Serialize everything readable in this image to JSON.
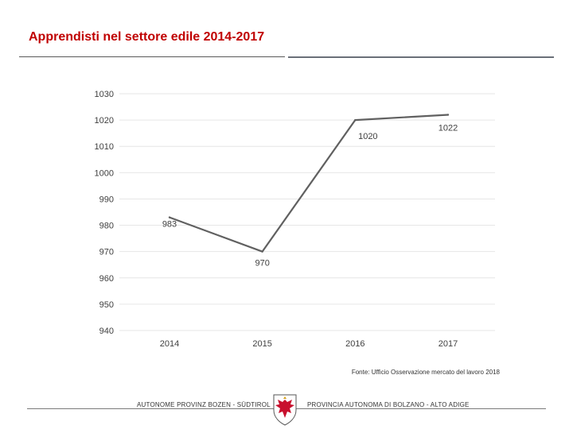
{
  "slide": {
    "title": "Apprendisti nel settore edile 2014-2017",
    "source": "Fonte: Ufficio Osservazione mercato del lavoro 2018"
  },
  "footer": {
    "left_text": "AUTONOME PROVINZ BOZEN - SÜDTIROL",
    "right_text": "PROVINCIA AUTONOMA DI BOLZANO - ALTO ADIGE",
    "emblem_icon": "tyrol-eagle-icon"
  },
  "colors": {
    "title": "#c00000",
    "line": "#606060",
    "grid": "#e6e6e6",
    "text": "#404040",
    "emblem_red": "#c8102e"
  },
  "chart_data": {
    "type": "line",
    "title": "",
    "xlabel": "",
    "ylabel": "",
    "categories": [
      "2014",
      "2015",
      "2016",
      "2017"
    ],
    "series": [
      {
        "name": "Apprendisti",
        "values": [
          983,
          970,
          1020,
          1022
        ]
      }
    ],
    "data_labels": [
      "983",
      "970",
      "1020",
      "1022"
    ],
    "ylim": [
      940,
      1030
    ],
    "yticks": [
      940,
      950,
      960,
      970,
      980,
      990,
      1000,
      1010,
      1020,
      1030
    ],
    "grid": true,
    "legend": "none"
  }
}
